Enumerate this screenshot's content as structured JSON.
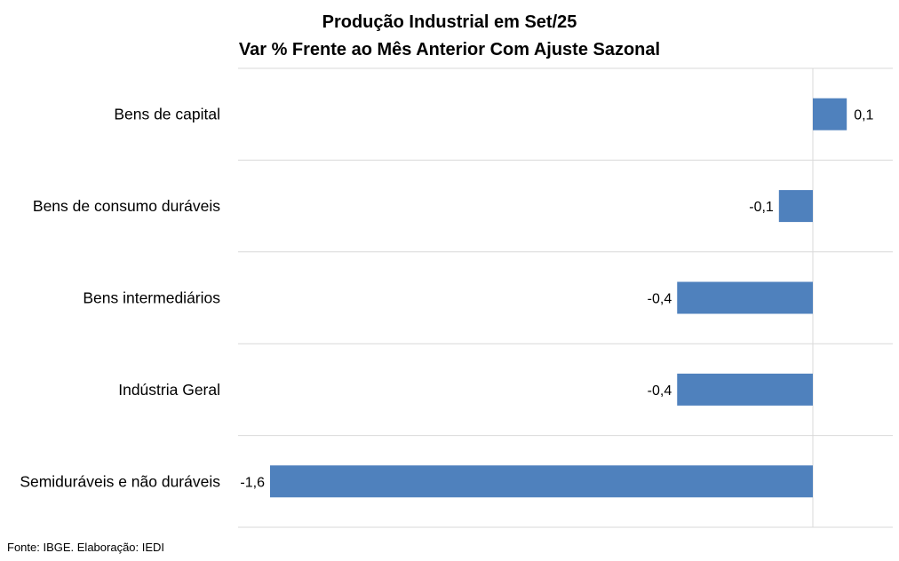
{
  "chart_data": {
    "type": "bar",
    "orientation": "horizontal",
    "title": "Produção Industrial em Set/25",
    "subtitle": "Var % Frente ao Mês Anterior Com Ajuste Sazonal",
    "categories": [
      "Bens de capital",
      "Bens de consumo duráveis",
      "Bens intermediários",
      "Indústria Geral",
      "Semiduráveis e não duráveis"
    ],
    "values": [
      0.1,
      -0.1,
      -0.4,
      -0.4,
      -1.6
    ],
    "value_labels": [
      "0,1",
      "-0,1",
      "-0,4",
      "-0,4",
      "-1,6"
    ],
    "xlim": [
      -1.7,
      0.25
    ],
    "xlabel": "",
    "ylabel": "",
    "grid": true,
    "bar_color": "#4f81bd",
    "grid_color": "#d9d9d9"
  },
  "source": "Fonte: IBGE. Elaboração: IEDI"
}
